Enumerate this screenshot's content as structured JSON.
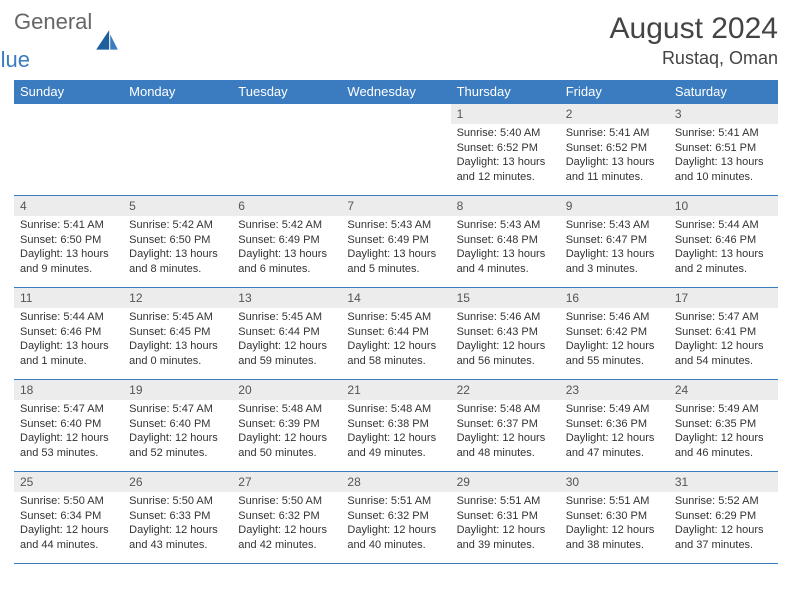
{
  "logo": {
    "general": "General",
    "blue": "Blue"
  },
  "title": "August 2024",
  "location": "Rustaq, Oman",
  "headerBg": "#3b7bbf",
  "dayBg": "#ececec",
  "columns": [
    "Sunday",
    "Monday",
    "Tuesday",
    "Wednesday",
    "Thursday",
    "Friday",
    "Saturday"
  ],
  "weeks": [
    [
      {
        "n": "",
        "sunrise": "",
        "sunset": "",
        "daylight": ""
      },
      {
        "n": "",
        "sunrise": "",
        "sunset": "",
        "daylight": ""
      },
      {
        "n": "",
        "sunrise": "",
        "sunset": "",
        "daylight": ""
      },
      {
        "n": "",
        "sunrise": "",
        "sunset": "",
        "daylight": ""
      },
      {
        "n": "1",
        "sunrise": "Sunrise: 5:40 AM",
        "sunset": "Sunset: 6:52 PM",
        "daylight": "Daylight: 13 hours and 12 minutes."
      },
      {
        "n": "2",
        "sunrise": "Sunrise: 5:41 AM",
        "sunset": "Sunset: 6:52 PM",
        "daylight": "Daylight: 13 hours and 11 minutes."
      },
      {
        "n": "3",
        "sunrise": "Sunrise: 5:41 AM",
        "sunset": "Sunset: 6:51 PM",
        "daylight": "Daylight: 13 hours and 10 minutes."
      }
    ],
    [
      {
        "n": "4",
        "sunrise": "Sunrise: 5:41 AM",
        "sunset": "Sunset: 6:50 PM",
        "daylight": "Daylight: 13 hours and 9 minutes."
      },
      {
        "n": "5",
        "sunrise": "Sunrise: 5:42 AM",
        "sunset": "Sunset: 6:50 PM",
        "daylight": "Daylight: 13 hours and 8 minutes."
      },
      {
        "n": "6",
        "sunrise": "Sunrise: 5:42 AM",
        "sunset": "Sunset: 6:49 PM",
        "daylight": "Daylight: 13 hours and 6 minutes."
      },
      {
        "n": "7",
        "sunrise": "Sunrise: 5:43 AM",
        "sunset": "Sunset: 6:49 PM",
        "daylight": "Daylight: 13 hours and 5 minutes."
      },
      {
        "n": "8",
        "sunrise": "Sunrise: 5:43 AM",
        "sunset": "Sunset: 6:48 PM",
        "daylight": "Daylight: 13 hours and 4 minutes."
      },
      {
        "n": "9",
        "sunrise": "Sunrise: 5:43 AM",
        "sunset": "Sunset: 6:47 PM",
        "daylight": "Daylight: 13 hours and 3 minutes."
      },
      {
        "n": "10",
        "sunrise": "Sunrise: 5:44 AM",
        "sunset": "Sunset: 6:46 PM",
        "daylight": "Daylight: 13 hours and 2 minutes."
      }
    ],
    [
      {
        "n": "11",
        "sunrise": "Sunrise: 5:44 AM",
        "sunset": "Sunset: 6:46 PM",
        "daylight": "Daylight: 13 hours and 1 minute."
      },
      {
        "n": "12",
        "sunrise": "Sunrise: 5:45 AM",
        "sunset": "Sunset: 6:45 PM",
        "daylight": "Daylight: 13 hours and 0 minutes."
      },
      {
        "n": "13",
        "sunrise": "Sunrise: 5:45 AM",
        "sunset": "Sunset: 6:44 PM",
        "daylight": "Daylight: 12 hours and 59 minutes."
      },
      {
        "n": "14",
        "sunrise": "Sunrise: 5:45 AM",
        "sunset": "Sunset: 6:44 PM",
        "daylight": "Daylight: 12 hours and 58 minutes."
      },
      {
        "n": "15",
        "sunrise": "Sunrise: 5:46 AM",
        "sunset": "Sunset: 6:43 PM",
        "daylight": "Daylight: 12 hours and 56 minutes."
      },
      {
        "n": "16",
        "sunrise": "Sunrise: 5:46 AM",
        "sunset": "Sunset: 6:42 PM",
        "daylight": "Daylight: 12 hours and 55 minutes."
      },
      {
        "n": "17",
        "sunrise": "Sunrise: 5:47 AM",
        "sunset": "Sunset: 6:41 PM",
        "daylight": "Daylight: 12 hours and 54 minutes."
      }
    ],
    [
      {
        "n": "18",
        "sunrise": "Sunrise: 5:47 AM",
        "sunset": "Sunset: 6:40 PM",
        "daylight": "Daylight: 12 hours and 53 minutes."
      },
      {
        "n": "19",
        "sunrise": "Sunrise: 5:47 AM",
        "sunset": "Sunset: 6:40 PM",
        "daylight": "Daylight: 12 hours and 52 minutes."
      },
      {
        "n": "20",
        "sunrise": "Sunrise: 5:48 AM",
        "sunset": "Sunset: 6:39 PM",
        "daylight": "Daylight: 12 hours and 50 minutes."
      },
      {
        "n": "21",
        "sunrise": "Sunrise: 5:48 AM",
        "sunset": "Sunset: 6:38 PM",
        "daylight": "Daylight: 12 hours and 49 minutes."
      },
      {
        "n": "22",
        "sunrise": "Sunrise: 5:48 AM",
        "sunset": "Sunset: 6:37 PM",
        "daylight": "Daylight: 12 hours and 48 minutes."
      },
      {
        "n": "23",
        "sunrise": "Sunrise: 5:49 AM",
        "sunset": "Sunset: 6:36 PM",
        "daylight": "Daylight: 12 hours and 47 minutes."
      },
      {
        "n": "24",
        "sunrise": "Sunrise: 5:49 AM",
        "sunset": "Sunset: 6:35 PM",
        "daylight": "Daylight: 12 hours and 46 minutes."
      }
    ],
    [
      {
        "n": "25",
        "sunrise": "Sunrise: 5:50 AM",
        "sunset": "Sunset: 6:34 PM",
        "daylight": "Daylight: 12 hours and 44 minutes."
      },
      {
        "n": "26",
        "sunrise": "Sunrise: 5:50 AM",
        "sunset": "Sunset: 6:33 PM",
        "daylight": "Daylight: 12 hours and 43 minutes."
      },
      {
        "n": "27",
        "sunrise": "Sunrise: 5:50 AM",
        "sunset": "Sunset: 6:32 PM",
        "daylight": "Daylight: 12 hours and 42 minutes."
      },
      {
        "n": "28",
        "sunrise": "Sunrise: 5:51 AM",
        "sunset": "Sunset: 6:32 PM",
        "daylight": "Daylight: 12 hours and 40 minutes."
      },
      {
        "n": "29",
        "sunrise": "Sunrise: 5:51 AM",
        "sunset": "Sunset: 6:31 PM",
        "daylight": "Daylight: 12 hours and 39 minutes."
      },
      {
        "n": "30",
        "sunrise": "Sunrise: 5:51 AM",
        "sunset": "Sunset: 6:30 PM",
        "daylight": "Daylight: 12 hours and 38 minutes."
      },
      {
        "n": "31",
        "sunrise": "Sunrise: 5:52 AM",
        "sunset": "Sunset: 6:29 PM",
        "daylight": "Daylight: 12 hours and 37 minutes."
      }
    ]
  ]
}
